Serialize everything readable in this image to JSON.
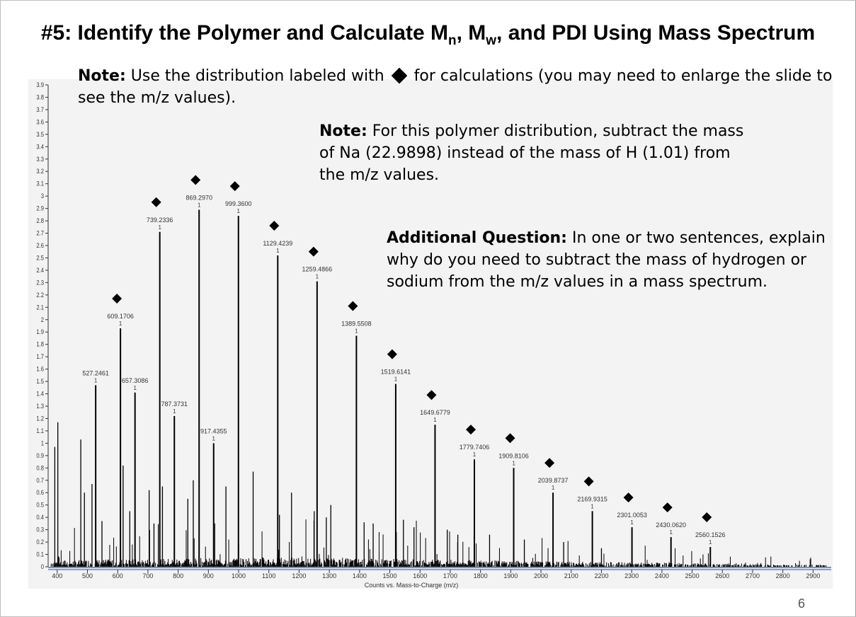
{
  "slide": {
    "title_prefix": "#5:  Identify the Polymer and Calculate M",
    "title_sub_n": "n",
    "title_mid": ", M",
    "title_sub_w": "w",
    "title_suffix": ", and PDI Using Mass Spectrum",
    "page_number": "6"
  },
  "notes": {
    "note1_label": "Note:",
    "note1_text_a": " Use the distribution labeled with ",
    "note1_text_b": " for calculations (you may need to enlarge the slide to see the m/z values).",
    "note2_label": "Note:",
    "note2_text": " For this polymer distribution, subtract the mass of Na (22.9898) instead of the mass of H (1.01) from the m/z values.",
    "question_label": "Additional Question:",
    "question_text": " In one or two sentences, explain why do you need to subtract the mass of hydrogen or sodium from the m/z values in a mass spectrum."
  },
  "chart_data": {
    "type": "bar",
    "xlabel": "Counts vs. Mass-to-Charge (m/z)",
    "ylabel": "",
    "xlim": [
      370,
      2960
    ],
    "ylim": [
      0,
      3.9
    ],
    "x_ticks": [
      "400",
      "500",
      "600",
      "700",
      "800",
      "900",
      "1000",
      "1100",
      "1200",
      "1300",
      "1400",
      "1500",
      "1600",
      "1700",
      "1800",
      "1900",
      "2000",
      "2100",
      "2200",
      "2300",
      "2400",
      "2500",
      "2600",
      "2700",
      "2800",
      "2900"
    ],
    "y_ticks": [
      "0",
      "0.1",
      "0.2",
      "0.3",
      "0.4",
      "0.5",
      "0.6",
      "0.7",
      "0.8",
      "0.9",
      "1",
      "1.1",
      "1.2",
      "1.3",
      "1.4",
      "1.5",
      "1.6",
      "1.7",
      "1.8",
      "1.9",
      "2",
      "2.1",
      "2.2",
      "2.3",
      "2.4",
      "2.5",
      "2.6",
      "2.7",
      "2.8",
      "2.9",
      "3",
      "3.1",
      "3.2",
      "3.3",
      "3.4",
      "3.5",
      "3.6",
      "3.7",
      "3.8",
      "3.9"
    ],
    "diamond_series": [
      {
        "mz": 609.1706,
        "label": "609.1706",
        "value": 1.93
      },
      {
        "mz": 739.2336,
        "label": "739.2336",
        "value": 2.71
      },
      {
        "mz": 869.297,
        "label": "869.2970",
        "value": 2.89
      },
      {
        "mz": 999.36,
        "label": "999.3600",
        "value": 2.84
      },
      {
        "mz": 1129.4239,
        "label": "1129.4239",
        "value": 2.52
      },
      {
        "mz": 1259.4866,
        "label": "1259.4866",
        "value": 2.31
      },
      {
        "mz": 1389.5508,
        "label": "1389.5508",
        "value": 1.87
      },
      {
        "mz": 1519.6141,
        "label": "1519.6141",
        "value": 1.48
      },
      {
        "mz": 1649.6779,
        "label": "1649.6779",
        "value": 1.15
      },
      {
        "mz": 1779.7406,
        "label": "1779.7406",
        "value": 0.87
      },
      {
        "mz": 1909.8106,
        "label": "1909.8106",
        "value": 0.8
      },
      {
        "mz": 2039.8737,
        "label": "2039.8737",
        "value": 0.6
      },
      {
        "mz": 2169.9315,
        "label": "2169.9315",
        "value": 0.45
      },
      {
        "mz": 2301.0053,
        "label": "2301.0053",
        "value": 0.32
      },
      {
        "mz": 2430.062,
        "label": "2430.0620",
        "value": 0.24
      },
      {
        "mz": 2560.1526,
        "label": "2560.1526",
        "value": 0.16
      }
    ],
    "other_labeled_peaks": [
      {
        "mz": 527.2461,
        "label": "527.2461",
        "value": 1.47
      },
      {
        "mz": 657.3086,
        "label": "657.3086",
        "value": 1.41
      },
      {
        "mz": 787.3731,
        "label": "787.3731",
        "value": 1.22
      },
      {
        "mz": 917.4355,
        "label": "917.4355",
        "value": 1.0
      }
    ],
    "peak_charge_label": "1"
  }
}
